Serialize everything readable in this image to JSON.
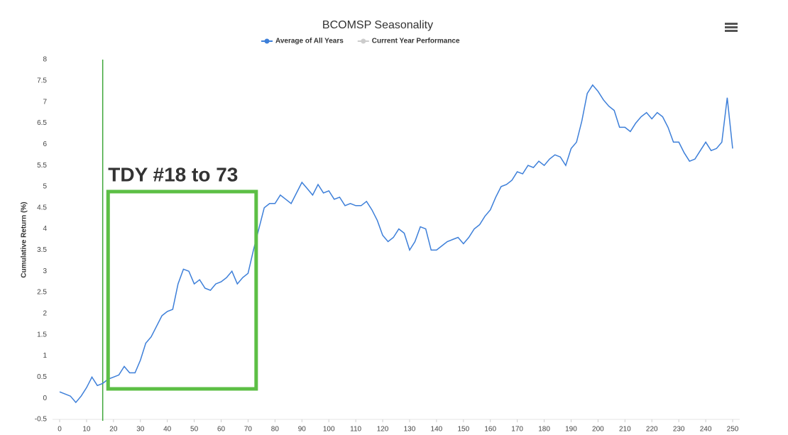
{
  "chart_data": {
    "type": "line",
    "title": "BCOMSP Seasonality",
    "y_label": "Cumulative Return (%)",
    "x": [
      0,
      2,
      4,
      6,
      8,
      10,
      12,
      14,
      16,
      18,
      20,
      22,
      24,
      26,
      28,
      30,
      32,
      34,
      36,
      38,
      40,
      42,
      44,
      46,
      48,
      50,
      52,
      54,
      56,
      58,
      60,
      62,
      64,
      66,
      68,
      70,
      72,
      74,
      76,
      78,
      80,
      82,
      84,
      86,
      88,
      90,
      92,
      94,
      96,
      98,
      100,
      102,
      104,
      106,
      108,
      110,
      112,
      114,
      116,
      118,
      120,
      122,
      124,
      126,
      128,
      130,
      132,
      134,
      136,
      138,
      140,
      142,
      144,
      146,
      148,
      150,
      152,
      154,
      156,
      158,
      160,
      162,
      164,
      166,
      168,
      170,
      172,
      174,
      176,
      178,
      180,
      182,
      184,
      186,
      188,
      190,
      192,
      194,
      196,
      198,
      200,
      202,
      204,
      206,
      208,
      210,
      212,
      214,
      216,
      218,
      220,
      222,
      224,
      226,
      228,
      230,
      232,
      234,
      236,
      238,
      240,
      242,
      244,
      246,
      248,
      250
    ],
    "series": [
      {
        "name": "Average of All Years",
        "color": "#3d7fd9",
        "values": [
          0.15,
          0.1,
          0.05,
          -0.1,
          0.05,
          0.25,
          0.5,
          0.3,
          0.35,
          0.45,
          0.5,
          0.55,
          0.75,
          0.6,
          0.6,
          0.9,
          1.3,
          1.45,
          1.7,
          1.95,
          2.05,
          2.1,
          2.7,
          3.05,
          3.0,
          2.7,
          2.8,
          2.6,
          2.55,
          2.7,
          2.75,
          2.85,
          3.0,
          2.7,
          2.85,
          2.95,
          3.5,
          4.0,
          4.5,
          4.6,
          4.6,
          4.8,
          4.7,
          4.6,
          4.85,
          5.1,
          4.95,
          4.8,
          5.05,
          4.85,
          4.9,
          4.7,
          4.75,
          4.55,
          4.6,
          4.55,
          4.55,
          4.65,
          4.45,
          4.2,
          3.85,
          3.7,
          3.8,
          4.0,
          3.9,
          3.5,
          3.7,
          4.05,
          4.0,
          3.5,
          3.5,
          3.6,
          3.7,
          3.75,
          3.8,
          3.65,
          3.8,
          4.0,
          4.1,
          4.3,
          4.45,
          4.75,
          5.0,
          5.05,
          5.15,
          5.35,
          5.3,
          5.5,
          5.45,
          5.6,
          5.5,
          5.65,
          5.75,
          5.7,
          5.5,
          5.9,
          6.05,
          6.55,
          7.2,
          7.4,
          7.25,
          7.05,
          6.9,
          6.8,
          6.4,
          6.4,
          6.3,
          6.5,
          6.65,
          6.75,
          6.6,
          6.75,
          6.65,
          6.4,
          6.05,
          6.05,
          5.8,
          5.6,
          5.65,
          5.85,
          6.05,
          5.85,
          5.9,
          6.05,
          7.1,
          5.9
        ]
      },
      {
        "name": "Current Year Performance",
        "color": "#cccccc",
        "values": [
          null,
          null,
          null,
          null,
          null,
          null,
          null,
          null,
          null,
          null,
          null,
          null,
          null,
          null,
          null,
          null,
          null,
          null,
          null,
          null,
          null,
          null,
          null,
          null,
          null,
          null,
          null,
          null,
          null,
          null,
          null,
          null,
          null,
          null,
          null,
          null,
          null,
          null,
          null,
          null,
          null,
          null,
          null,
          null,
          null,
          null,
          null,
          null,
          null,
          null,
          null,
          null,
          null,
          null,
          null,
          null,
          null,
          null,
          null,
          null,
          null,
          null,
          null,
          null,
          null,
          null,
          null,
          null,
          null,
          null,
          null,
          null,
          null,
          null,
          null,
          null,
          null,
          null,
          null,
          null,
          null,
          null,
          null,
          null,
          null,
          null,
          null,
          null,
          null,
          null,
          null,
          null,
          null,
          null,
          null,
          null,
          null,
          null,
          null,
          null,
          null,
          null,
          null,
          null,
          null,
          null,
          null,
          null,
          null,
          null,
          null,
          null,
          null,
          null,
          null,
          null,
          null,
          null,
          null,
          null,
          null,
          null,
          null,
          null,
          null,
          null
        ]
      }
    ],
    "xlim": [
      0,
      250
    ],
    "xticks": [
      0,
      10,
      20,
      30,
      40,
      50,
      60,
      70,
      80,
      90,
      100,
      110,
      120,
      130,
      140,
      150,
      160,
      170,
      180,
      190,
      200,
      210,
      220,
      230,
      240,
      250
    ],
    "ylim": [
      -0.5,
      8
    ],
    "yticks": [
      -0.5,
      0,
      0.5,
      1,
      1.5,
      2,
      2.5,
      3,
      3.5,
      4,
      4.5,
      5,
      5.5,
      6,
      6.5,
      7,
      7.5,
      8
    ],
    "vline_x": 16,
    "highlight": {
      "label": "TDY #18 to 73",
      "start": 18,
      "end": 73,
      "color": "#5cbf45"
    }
  }
}
